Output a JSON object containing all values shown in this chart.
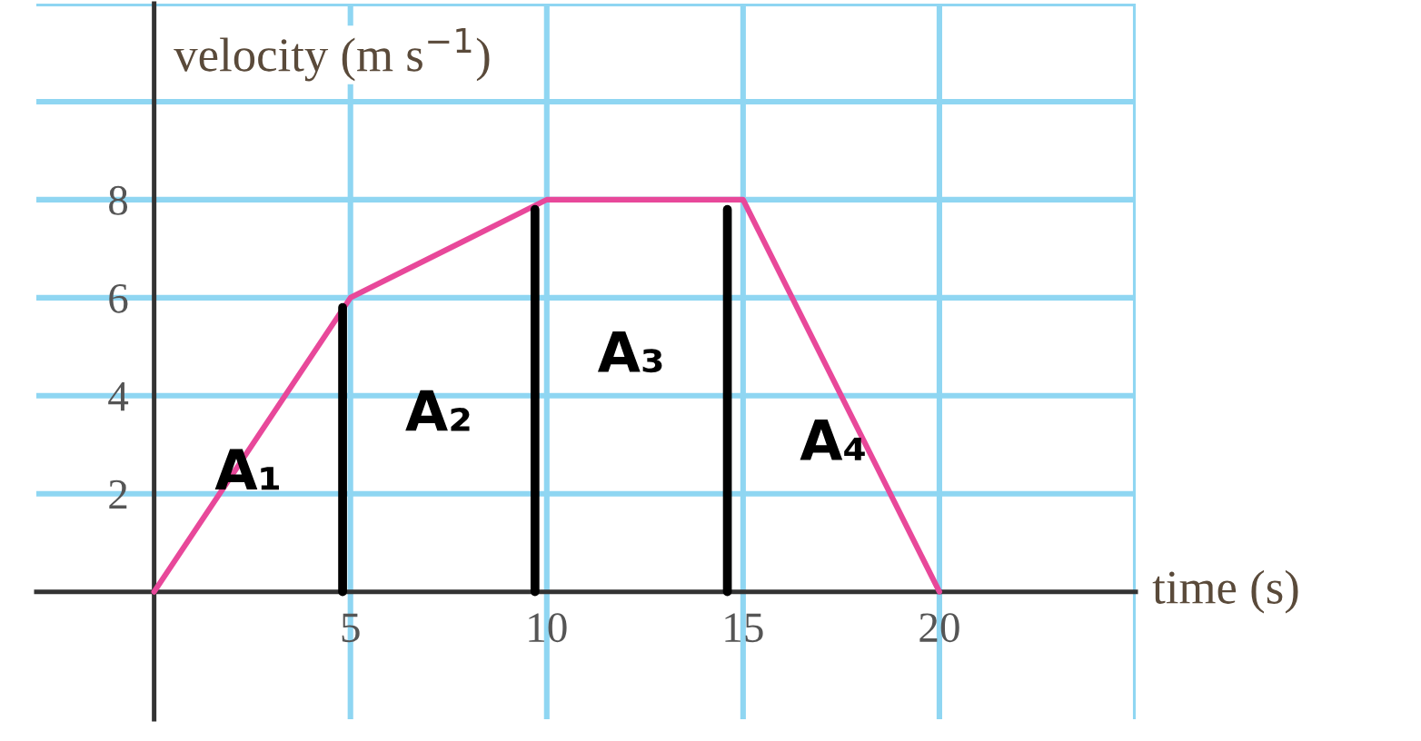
{
  "chart_data": {
    "type": "line",
    "xlabel": "time (s)",
    "ylabel": "velocity (m s$^{−1}$)",
    "series": [
      {
        "color": "#e8489a",
        "x": [
          0,
          5,
          10,
          15,
          20
        ],
        "values": [
          0,
          6,
          8,
          8,
          0
        ]
      },
      {
        "color": "#000000",
        "x": [
          4.8,
          4.8
        ],
        "values": [
          0,
          5.8
        ]
      },
      {
        "color": "#000000",
        "x": [
          9.7,
          9.7
        ],
        "values": [
          0,
          7.8
        ]
      },
      {
        "color": "#000000",
        "x": [
          14.6,
          14.6
        ],
        "values": [
          0,
          7.8
        ]
      }
    ],
    "annotations": [
      "A₁",
      "A₂",
      "A₃",
      "A₄"
    ],
    "xlim": [
      -3,
      25
    ],
    "ylim": [
      -2.6,
      12
    ],
    "xticks": [
      5,
      10,
      15,
      20,
      {
        "value": 25,
        "label": null
      }
    ],
    "yticks": [
      2,
      4,
      6,
      8,
      {
        "value": 10,
        "label": null
      },
      {
        "value": 12,
        "label": null
      }
    ],
    "grid": true,
    "legend": false,
    "marker": "none",
    "line_style": "solid"
  }
}
